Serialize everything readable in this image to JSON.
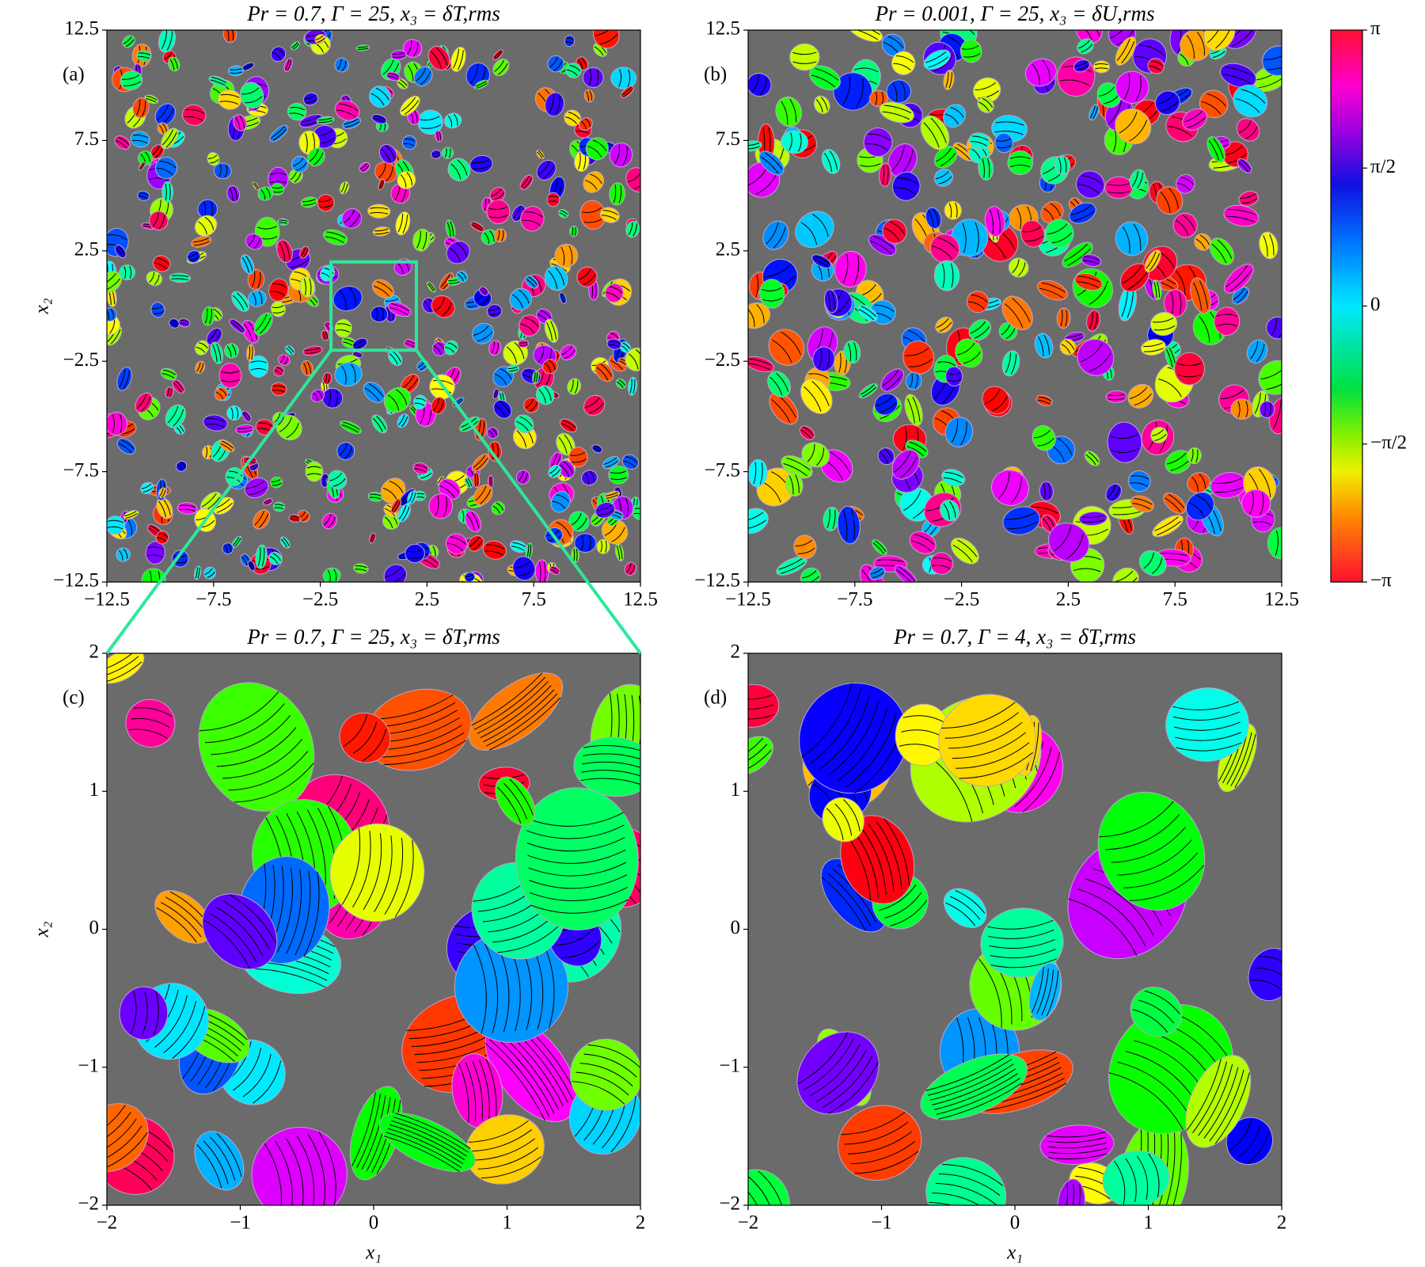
{
  "chart_data": [
    {
      "type": "heatmap",
      "title": "Pr = 0.7,  Γ = 25,  x₃ = δT,rms",
      "panel_label": "(a)",
      "ylabel": "x₂",
      "xlim": [
        -12.5,
        12.5
      ],
      "ylim": [
        -12.5,
        12.5
      ],
      "xticks": [
        {
          "value": -12.5,
          "label": "−12.5"
        },
        {
          "value": -7.5,
          "label": "−7.5"
        },
        {
          "value": -2.5,
          "label": "−2.5"
        },
        2.5,
        7.5,
        12.5
      ],
      "yticks": [
        {
          "value": -12.5,
          "label": "−12.5"
        },
        {
          "value": -7.5,
          "label": "−7.5"
        },
        {
          "value": -2.5,
          "label": "−2.5"
        },
        2.5,
        7.5,
        12.5
      ]
    },
    {
      "type": "heatmap",
      "title": "Pr = 0.001,  Γ = 25,  x₃ = δU,rms",
      "panel_label": "(b)",
      "xlim": [
        -12.5,
        12.5
      ],
      "ylim": [
        -12.5,
        12.5
      ],
      "xticks": [
        {
          "value": -12.5,
          "label": "−12.5"
        },
        {
          "value": -7.5,
          "label": "−7.5"
        },
        {
          "value": -2.5,
          "label": "−2.5"
        },
        2.5,
        7.5,
        12.5
      ],
      "yticks": [
        {
          "value": -12.5,
          "label": "−12.5"
        },
        {
          "value": -7.5,
          "label": "−7.5"
        },
        {
          "value": -2.5,
          "label": "−2.5"
        },
        2.5,
        7.5,
        12.5
      ]
    },
    {
      "type": "heatmap",
      "title": "Pr = 0.7,  Γ = 25,  x₃ = δT,rms",
      "panel_label": "(c)",
      "ylabel": "x₂",
      "xlabel": "x₁",
      "xlim": [
        -2,
        2
      ],
      "ylim": [
        -2,
        2
      ],
      "xticks": [
        {
          "value": -2,
          "label": "−2"
        },
        {
          "value": -1,
          "label": "−1"
        },
        0,
        1,
        2
      ],
      "yticks": [
        {
          "value": -2,
          "label": "−2"
        },
        {
          "value": -1,
          "label": "−1"
        },
        0,
        1,
        2
      ]
    },
    {
      "type": "heatmap",
      "title": "Pr = 0.7,  Γ = 4,  x₃ = δT,rms",
      "panel_label": "(d)",
      "xlabel": "x₁",
      "xlim": [
        -2,
        2
      ],
      "ylim": [
        -2,
        2
      ],
      "xticks": [
        {
          "value": -2,
          "label": "−2"
        },
        {
          "value": -1,
          "label": "−1"
        },
        0,
        1,
        2
      ],
      "yticks": [
        {
          "value": -2,
          "label": "−2"
        },
        {
          "value": -1,
          "label": "−1"
        },
        0,
        1,
        2
      ]
    },
    {
      "type": "colorbar",
      "ylim": [
        -3.141593,
        3.141593
      ],
      "yticks": [
        {
          "value": -3.141593,
          "label": "−π"
        },
        {
          "value": -1.570796,
          "label": "−π/2"
        },
        0,
        {
          "value": 1.570796,
          "label": "π/2"
        },
        {
          "value": 3.141593,
          "label": "π"
        }
      ]
    }
  ]
}
